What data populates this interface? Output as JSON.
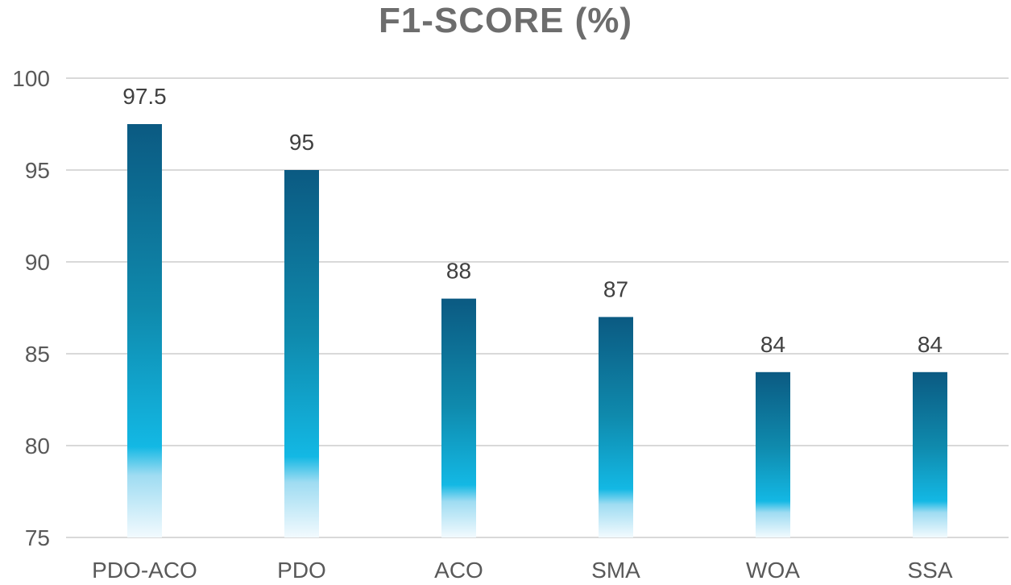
{
  "chart_data": {
    "type": "bar",
    "title": "F1-SCORE (%)",
    "xlabel": "",
    "ylabel": "",
    "categories": [
      "PDO-ACO",
      "PDO",
      "ACO",
      "SMA",
      "WOA",
      "SSA"
    ],
    "values": [
      97.5,
      95,
      88,
      87,
      84,
      84
    ],
    "data_labels": [
      "97.5",
      "95",
      "88",
      "87",
      "84",
      "84"
    ],
    "ylim": [
      75,
      100
    ],
    "yticks": [
      75,
      80,
      85,
      90,
      95,
      100
    ],
    "grid": true,
    "legend": "none",
    "colors": {
      "bar_top": "#0b5a82",
      "bar_mid": "#0f8aad",
      "bar_bright": "#13b8e4",
      "bar_fade": "#e8f6fc",
      "grid": "#d9d9d9",
      "tick_text": "#595959",
      "label_text": "#404040",
      "title": "#6d6d6d"
    }
  }
}
